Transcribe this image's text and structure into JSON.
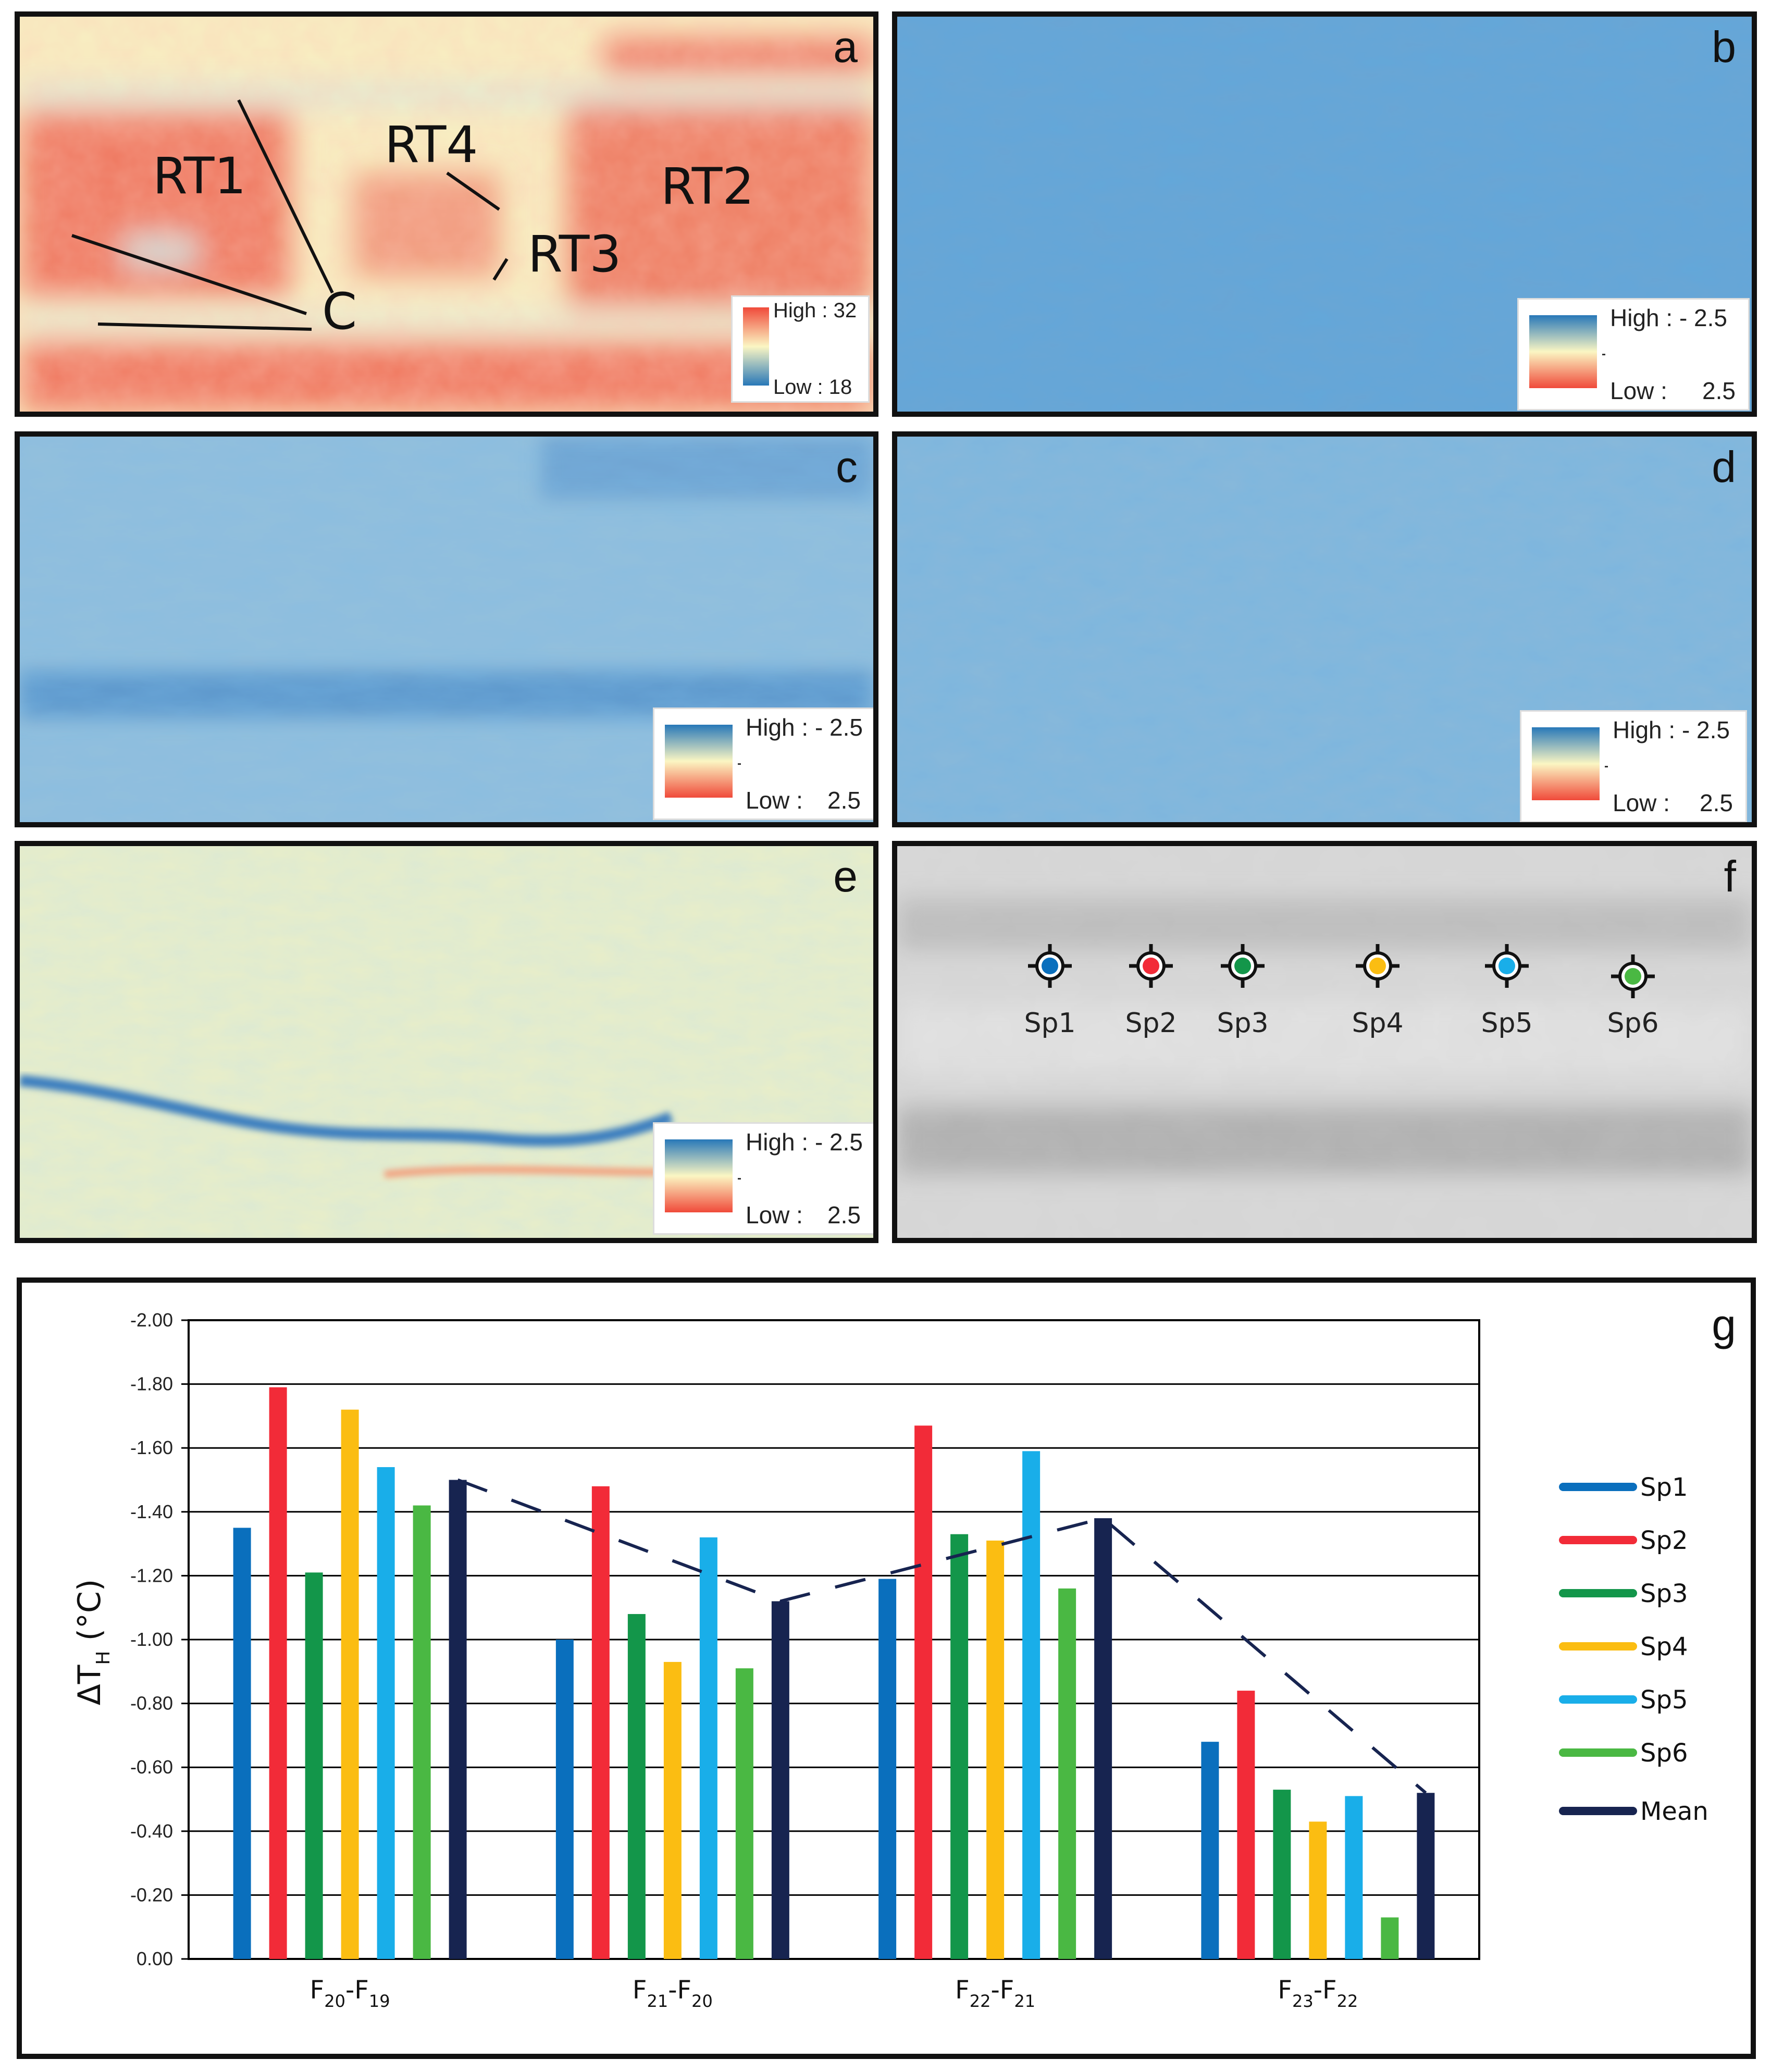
{
  "panels": {
    "a": {
      "letter": "a",
      "legend_high": "High : 32",
      "legend_low": "Low : 18",
      "sites": [
        "RT1",
        "RT4",
        "RT2",
        "RT3",
        "C"
      ]
    },
    "b": {
      "letter": "b",
      "legend_high": "High : - 2.5",
      "legend_low": "Low :",
      "legend_low_value": "2.5"
    },
    "c": {
      "letter": "c",
      "legend_high": "High : - 2.5",
      "legend_low": "Low :",
      "legend_low_value": "2.5"
    },
    "d": {
      "letter": "d",
      "legend_high": "High : - 2.5",
      "legend_low": "Low :",
      "legend_low_value": "2.5"
    },
    "e": {
      "letter": "e",
      "legend_high": "High : - 2.5",
      "legend_low": "Low :",
      "legend_low_value": "2.5"
    },
    "f": {
      "letter": "f",
      "points": [
        "Sp1",
        "Sp2",
        "Sp3",
        "Sp4",
        "Sp5",
        "Sp6"
      ]
    }
  },
  "colors": {
    "Sp1": "#0a6fbd",
    "Sp2": "#f22b38",
    "Sp3": "#13964a",
    "Sp4": "#fbbd12",
    "Sp5": "#19aee9",
    "Sp6": "#4ab843",
    "Mean": "#172450",
    "ramp_high": "#2878b8",
    "ramp_mid": "#fbf6c3",
    "ramp_low": "#f04a3a"
  },
  "chart_data": {
    "type": "bar",
    "panel_letter": "g",
    "categories": [
      "F20-F19",
      "F21-F20",
      "F22-F21",
      "F23-F22"
    ],
    "category_parts": [
      [
        "F",
        "20",
        "-F",
        "19"
      ],
      [
        "F",
        "21",
        "-F",
        "20"
      ],
      [
        "F",
        "22",
        "-F",
        "21"
      ],
      [
        "F",
        "23",
        "-F",
        "22"
      ]
    ],
    "ylabel_main": "ΔT",
    "ylabel_sub": "H",
    "ylabel_unit": "(°C)",
    "ylim": [
      0,
      -2.0
    ],
    "yticks": [
      "0.00",
      "-0.20",
      "-0.40",
      "-0.60",
      "-0.80",
      "-1.00",
      "-1.20",
      "-1.40",
      "-1.60",
      "-1.80",
      "-2.00"
    ],
    "grid": true,
    "legend_position": "right",
    "series": [
      {
        "name": "Sp1",
        "values": [
          -1.35,
          -1.0,
          -1.19,
          -0.68
        ]
      },
      {
        "name": "Sp2",
        "values": [
          -1.79,
          -1.48,
          -1.67,
          -0.84
        ]
      },
      {
        "name": "Sp3",
        "values": [
          -1.21,
          -1.08,
          -1.33,
          -0.53
        ]
      },
      {
        "name": "Sp4",
        "values": [
          -1.72,
          -0.93,
          -1.31,
          -0.43
        ]
      },
      {
        "name": "Sp5",
        "values": [
          -1.54,
          -1.32,
          -1.59,
          -0.51
        ]
      },
      {
        "name": "Sp6",
        "values": [
          -1.42,
          -0.91,
          -1.16,
          -0.13
        ]
      },
      {
        "name": "Mean",
        "values": [
          -1.5,
          -1.12,
          -1.38,
          -0.52
        ]
      }
    ]
  }
}
